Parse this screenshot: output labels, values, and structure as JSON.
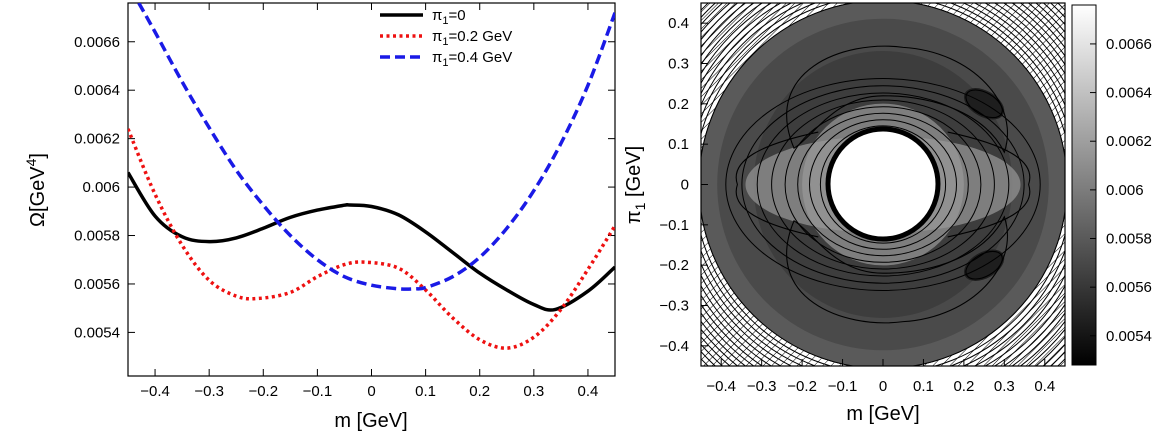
{
  "chart_data": [
    {
      "type": "line",
      "xlabel": "m [GeV]",
      "ylabel_main": "Ω[GeV",
      "ylabel_sup": "4",
      "ylabel_close": "]",
      "xlim": [
        -0.45,
        0.45
      ],
      "ylim": [
        0.00522,
        0.00676
      ],
      "xticks": [
        -0.4,
        -0.3,
        -0.2,
        -0.1,
        0,
        0.1,
        0.2,
        0.3,
        0.4
      ],
      "xtick_labels": [
        "−0.4",
        "−0.3",
        "−0.2",
        "−0.1",
        "0",
        "0.1",
        "0.2",
        "0.3",
        "0.4"
      ],
      "yticks": [
        0.0054,
        0.0056,
        0.0058,
        0.006,
        0.0062,
        0.0064,
        0.0066
      ],
      "ytick_labels": [
        "0.0054",
        "0.0056",
        "0.0058",
        "0.006",
        "0.0062",
        "0.0064",
        "0.0066"
      ],
      "legend_placement": "top-right",
      "series": [
        {
          "name": "π₁=0",
          "legend_main": "π",
          "legend_sub": "1",
          "legend_rest": "=0",
          "color": "#000000",
          "style": "solid",
          "x": [
            -0.45,
            -0.4,
            -0.35,
            -0.3,
            -0.25,
            -0.2,
            -0.15,
            -0.1,
            -0.05,
            -0.04,
            0.0,
            0.05,
            0.1,
            0.15,
            0.2,
            0.25,
            0.3,
            0.34,
            0.4,
            0.45
          ],
          "y": [
            0.00606,
            0.00588,
            0.005795,
            0.005775,
            0.00579,
            0.00583,
            0.005875,
            0.005905,
            0.005925,
            0.005926,
            0.00592,
            0.005885,
            0.005815,
            0.00573,
            0.005645,
            0.005575,
            0.005515,
            0.005495,
            0.00557,
            0.00567
          ]
        },
        {
          "name": "π₁=0.2 GeV",
          "legend_main": "π",
          "legend_sub": "1",
          "legend_rest": "=0.2 GeV",
          "color": "#ee1111",
          "style": "dotted",
          "x": [
            -0.45,
            -0.4,
            -0.35,
            -0.3,
            -0.25,
            -0.21,
            -0.15,
            -0.1,
            -0.05,
            -0.01,
            0.05,
            0.1,
            0.15,
            0.2,
            0.25,
            0.3,
            0.35,
            0.4,
            0.45
          ],
          "y": [
            0.00624,
            0.00597,
            0.00576,
            0.005615,
            0.00555,
            0.00554,
            0.005565,
            0.00563,
            0.00568,
            0.00569,
            0.005665,
            0.005575,
            0.00546,
            0.00537,
            0.005335,
            0.00538,
            0.005495,
            0.00566,
            0.00584
          ]
        },
        {
          "name": "π₁=0.4 GeV",
          "legend_main": "π",
          "legend_sub": "1",
          "legend_rest": "=0.4 GeV",
          "color": "#1a1ae6",
          "style": "dashed",
          "x": [
            -0.43,
            -0.4,
            -0.35,
            -0.3,
            -0.25,
            -0.2,
            -0.15,
            -0.1,
            -0.05,
            0.0,
            0.05,
            0.08,
            0.1,
            0.15,
            0.2,
            0.25,
            0.3,
            0.35,
            0.4,
            0.45
          ],
          "y": [
            0.00676,
            0.00664,
            0.006435,
            0.006245,
            0.00607,
            0.005925,
            0.0058,
            0.0057,
            0.00563,
            0.005595,
            0.00558,
            0.00558,
            0.005585,
            0.00563,
            0.00571,
            0.00583,
            0.005985,
            0.00618,
            0.00642,
            0.00672
          ]
        }
      ]
    },
    {
      "type": "heatmap",
      "xlabel": "m [GeV]",
      "ylabel_main": "π",
      "ylabel_sub": "1",
      "ylabel_rest": " [GeV]",
      "xlim": [
        -0.45,
        0.45
      ],
      "ylim": [
        -0.45,
        0.45
      ],
      "xticks": [
        -0.4,
        -0.3,
        -0.2,
        -0.1,
        0,
        0.1,
        0.2,
        0.3,
        0.4
      ],
      "xtick_labels": [
        "−0.4",
        "−0.3",
        "−0.2",
        "−0.1",
        "0",
        "0.1",
        "0.2",
        "0.3",
        "0.4"
      ],
      "yticks": [
        -0.4,
        -0.3,
        -0.2,
        -0.1,
        0,
        0.1,
        0.2,
        0.3,
        0.4
      ],
      "ytick_labels": [
        "−0.4",
        "−0.3",
        "−0.2",
        "−0.1",
        "0",
        "0.1",
        "0.2",
        "0.3",
        "0.4"
      ],
      "colorbar_range": [
        0.00528,
        0.00676
      ],
      "colorbar_ticks": [
        0.0054,
        0.0056,
        0.0058,
        0.006,
        0.0062,
        0.0064,
        0.0066
      ],
      "colorbar_labels": [
        "0.0054",
        "0.0056",
        "0.0058",
        "0.006",
        "0.0062",
        "0.0064",
        "0.0066"
      ],
      "colormap": "grayscale (black = low, white = high)",
      "excluded_region_radius": 0.125,
      "minima": [
        [
          0.25,
          0.2
        ],
        [
          0.25,
          -0.2
        ]
      ]
    }
  ]
}
